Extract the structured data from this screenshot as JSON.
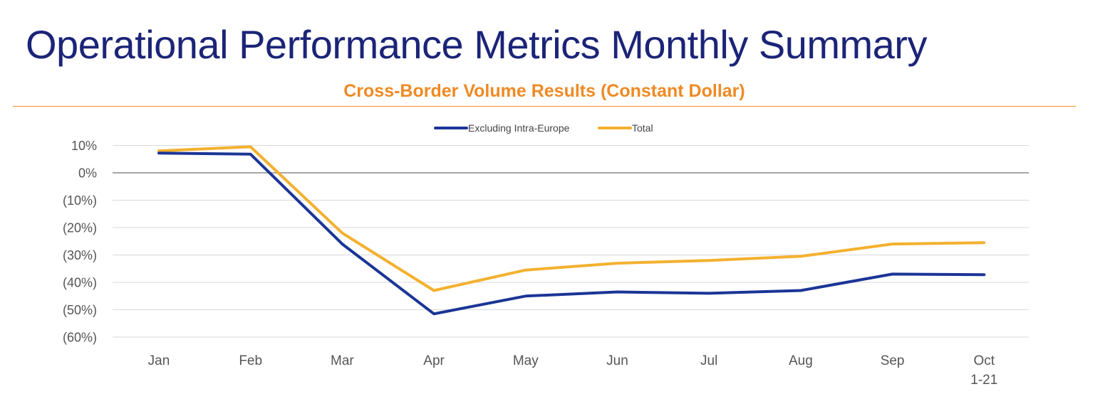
{
  "page": {
    "title": "Operational Performance Metrics Monthly Summary"
  },
  "chart_data": {
    "type": "line",
    "title": "Cross-Border Volume Results (Constant Dollar)",
    "xlabel": "",
    "ylabel": "",
    "categories": [
      "Jan",
      "Feb",
      "Mar",
      "Apr",
      "May",
      "Jun",
      "Jul",
      "Aug",
      "Sep",
      "Oct"
    ],
    "category_sublabels": [
      "",
      "",
      "",
      "",
      "",
      "",
      "",
      "",
      "",
      "1-21"
    ],
    "ylim": [
      -60,
      10
    ],
    "yticks": [
      10,
      0,
      -10,
      -20,
      -30,
      -40,
      -50,
      -60
    ],
    "ytick_labels": [
      "10%",
      "0%",
      "(10%)",
      "(20%)",
      "(30%)",
      "(40%)",
      "(50%)",
      "(60%)"
    ],
    "series": [
      {
        "name": "Excluding Intra-Europe",
        "color": "#1b3596",
        "values": [
          7.2,
          6.8,
          -26,
          -51.5,
          -45,
          -43.5,
          -44,
          -43,
          -37,
          -37.2
        ]
      },
      {
        "name": "Total",
        "color": "#f3b12f",
        "values": [
          8,
          9.5,
          -22,
          -43,
          -35.5,
          -33,
          -32,
          -30.5,
          -26,
          -25.5
        ]
      }
    ],
    "grid": true,
    "legend_position": "top-center"
  }
}
